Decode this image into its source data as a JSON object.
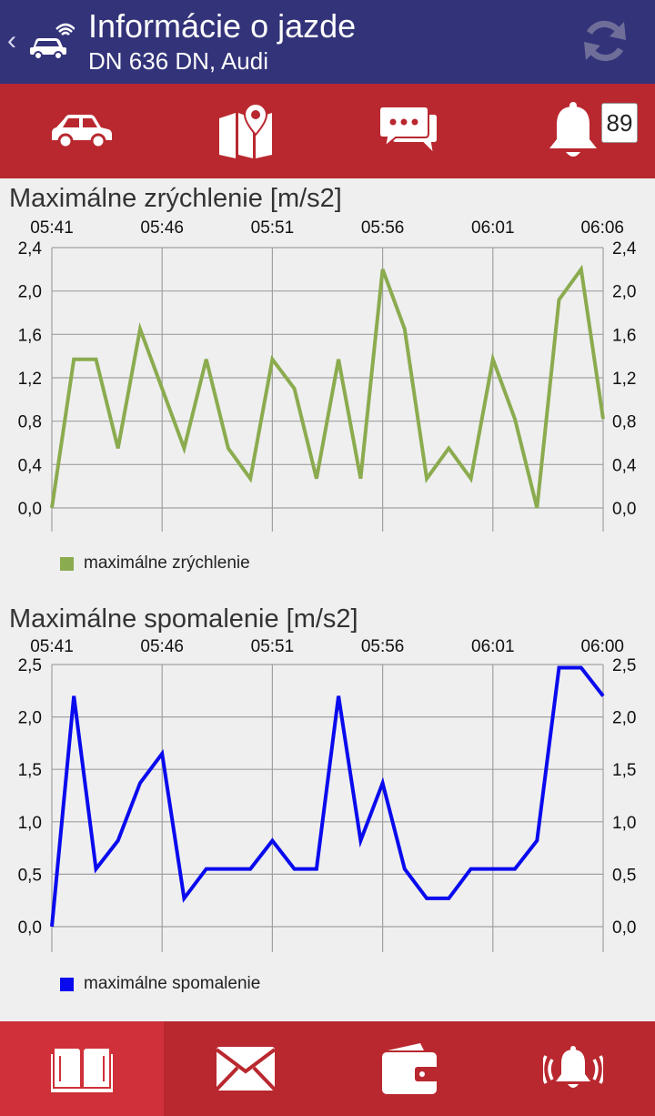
{
  "header": {
    "title": "Informácie o jazde",
    "subtitle": "DN 636 DN, Audi",
    "back_glyph": "‹"
  },
  "colors": {
    "header_bg": "#33337a",
    "bar_bg": "#b9282f",
    "bar_active": "#cf3039",
    "series1": "#8bab4f",
    "series2": "#0a0aee"
  },
  "icon_bar": {
    "items": [
      "car-icon",
      "map-icon",
      "messages-icon",
      "bell-icon"
    ],
    "notification_count": "89"
  },
  "bottom_bar": {
    "items": [
      "book-icon",
      "mail-icon",
      "wallet-icon",
      "alarm-icon"
    ],
    "active_index": 0
  },
  "chart_data": [
    {
      "type": "line",
      "title": "Maximálne zrýchlenie [m/s2]",
      "x_tick_labels": [
        "05:41",
        "05:46",
        "05:51",
        "05:56",
        "06:01",
        "06:06"
      ],
      "ylim": [
        0,
        2.4
      ],
      "y_ticks": [
        "0,0",
        "0,4",
        "0,8",
        "1,2",
        "1,6",
        "2,0",
        "2,4"
      ],
      "grid": true,
      "legend_position": "bottom-left",
      "series": [
        {
          "name": "maximálne zrýchlenie",
          "values": [
            0.0,
            1.37,
            1.37,
            0.55,
            1.65,
            1.1,
            0.55,
            1.37,
            0.55,
            0.27,
            1.37,
            1.1,
            0.27,
            1.37,
            0.27,
            2.2,
            1.65,
            0.27,
            0.55,
            0.27,
            1.37,
            0.82,
            0.0,
            1.92,
            2.2,
            0.82
          ]
        }
      ]
    },
    {
      "type": "line",
      "title": "Maximálne spomalenie [m/s2]",
      "x_tick_labels": [
        "05:41",
        "05:46",
        "05:51",
        "05:56",
        "06:01",
        "06:00"
      ],
      "ylim": [
        0,
        2.5
      ],
      "y_ticks": [
        "0,0",
        "0,5",
        "1,0",
        "1,5",
        "2,0",
        "2,5"
      ],
      "grid": true,
      "legend_position": "bottom-left",
      "series": [
        {
          "name": "maximálne spomalenie",
          "values": [
            0.0,
            2.2,
            0.55,
            0.82,
            1.37,
            1.65,
            0.27,
            0.55,
            0.55,
            0.55,
            0.82,
            0.55,
            0.55,
            2.2,
            0.82,
            1.37,
            0.55,
            0.27,
            0.27,
            0.55,
            0.55,
            0.55,
            0.82,
            2.47,
            2.47,
            2.2
          ]
        }
      ]
    }
  ]
}
